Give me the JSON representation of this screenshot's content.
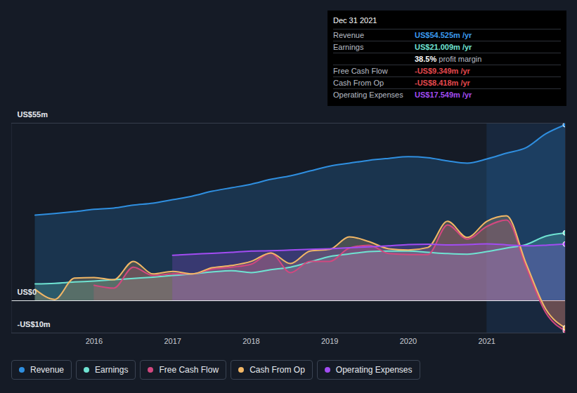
{
  "chart_data": {
    "type": "area",
    "x": [
      2015.25,
      2015.5,
      2015.75,
      2016,
      2016.25,
      2016.5,
      2016.75,
      2017,
      2017.25,
      2017.5,
      2017.75,
      2018,
      2018.25,
      2018.5,
      2018.75,
      2019,
      2019.25,
      2019.5,
      2019.75,
      2020,
      2020.25,
      2020.5,
      2020.75,
      2021,
      2021.25,
      2021.5,
      2021.75,
      2022
    ],
    "xlim": [
      2014.95,
      2022.0
    ],
    "xticks": [
      2016,
      2017,
      2018,
      2019,
      2020,
      2021
    ],
    "ylim": [
      -10,
      55
    ],
    "yticks": [
      {
        "value": 55,
        "label": "US$55m"
      },
      {
        "value": 0,
        "label": "US$0"
      },
      {
        "value": -10,
        "label": "-US$10m"
      }
    ],
    "grid": true,
    "legend": "bottom",
    "series": [
      {
        "name": "Revenue",
        "color": "#2f8fe0",
        "values": [
          26.5,
          27.0,
          27.6,
          28.3,
          28.7,
          29.6,
          30.2,
          31.3,
          32.4,
          33.9,
          35.0,
          36.1,
          37.6,
          38.7,
          40.2,
          41.7,
          42.6,
          43.5,
          44.1,
          44.6,
          44.3,
          43.3,
          42.6,
          43.9,
          45.7,
          47.4,
          51.7,
          54.525
        ]
      },
      {
        "name": "Earnings",
        "color": "#6fe3d2",
        "values": [
          5.2,
          5.4,
          5.8,
          6.1,
          6.5,
          6.9,
          7.3,
          7.8,
          8.3,
          8.9,
          9.3,
          8.7,
          9.6,
          10.4,
          12.0,
          13.7,
          14.5,
          15.2,
          15.4,
          15.4,
          15.0,
          14.6,
          14.4,
          15.2,
          16.3,
          17.4,
          20.0,
          21.009
        ]
      },
      {
        "name": "Free Cash Flow",
        "color": "#d2487f",
        "values": [
          null,
          null,
          null,
          4.8,
          3.9,
          10.4,
          7.8,
          8.3,
          8.3,
          9.8,
          10.4,
          11.3,
          14.8,
          8.7,
          12.2,
          12.2,
          16.3,
          17.2,
          14.6,
          14.3,
          14.3,
          23.5,
          19.1,
          23.0,
          25.0,
          10.4,
          -3.7,
          -9.349
        ]
      },
      {
        "name": "Cash From Op",
        "color": "#f2b766",
        "values": [
          3.5,
          0.4,
          7.0,
          7.2,
          6.5,
          12.2,
          8.3,
          9.1,
          8.3,
          10.2,
          10.9,
          12.2,
          14.8,
          11.5,
          15.4,
          15.9,
          19.8,
          18.3,
          16.1,
          15.7,
          16.5,
          24.6,
          19.6,
          24.6,
          26.3,
          11.5,
          -2.6,
          -8.418
        ]
      },
      {
        "name": "Operating Expenses",
        "color": "#a24cf2",
        "values": [
          null,
          null,
          null,
          null,
          null,
          null,
          null,
          14.1,
          14.4,
          14.7,
          15.0,
          15.4,
          15.5,
          15.7,
          15.9,
          16.1,
          16.4,
          16.7,
          17.0,
          17.4,
          17.5,
          17.3,
          17.4,
          17.6,
          17.3,
          17.0,
          17.2,
          17.549
        ]
      }
    ],
    "annotation": {
      "title": "Dec 31 2021",
      "rows": [
        {
          "label": "Revenue",
          "value": "US$54.525m /yr",
          "color": "#3b9cf0"
        },
        {
          "label": "Earnings",
          "value": "US$21.009m /yr",
          "color": "#6fe3d2"
        },
        {
          "value": "38.5%",
          "label": "profit margin",
          "color": "#ffffff"
        },
        {
          "label": "Free Cash Flow",
          "value": "-US$9.349m /yr",
          "color": "#e5484d"
        },
        {
          "label": "Cash From Op",
          "value": "-US$8.418m /yr",
          "color": "#e5484d"
        },
        {
          "label": "Operating Expenses",
          "value": "US$17.549m /yr",
          "color": "#a24cf2"
        }
      ]
    }
  }
}
